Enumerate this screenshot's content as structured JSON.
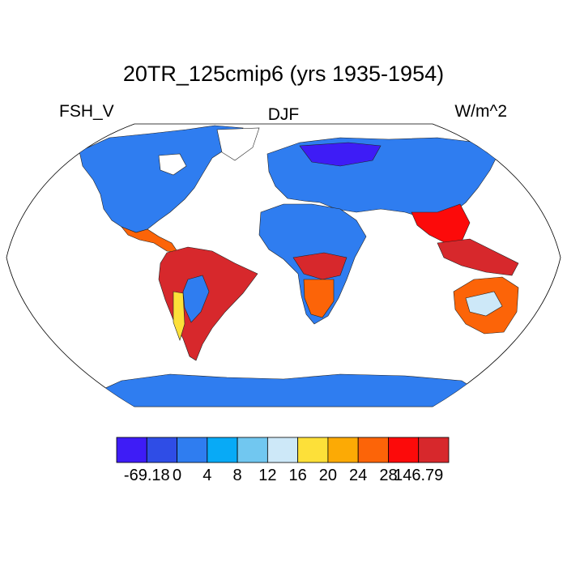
{
  "title": "20TR_125cmip6 (yrs 1935-1954)",
  "left_label": "FSH_V",
  "center_label": "DJF",
  "right_label": "W/m^2",
  "colorbar": {
    "colors": [
      "#3e1cf6",
      "#2f4de6",
      "#2f7df0",
      "#08aaf6",
      "#71c7f0",
      "#cde8f8",
      "#fde039",
      "#fcaa05",
      "#fc6408",
      "#fc0a0a",
      "#d7282c"
    ],
    "labels": [
      "-69.18",
      "0",
      "4",
      "8",
      "12",
      "16",
      "20",
      "24",
      "28",
      "146.79"
    ]
  },
  "chart_data": {
    "type": "heatmap",
    "title": "20TR_125cmip6 (yrs 1935-1954)",
    "variable": "FSH_V",
    "season": "DJF",
    "units": "W/m^2",
    "projection": "Robinson",
    "levels": [
      0,
      4,
      8,
      12,
      16,
      20,
      24,
      28
    ],
    "min": -69.18,
    "max": 146.79
  }
}
